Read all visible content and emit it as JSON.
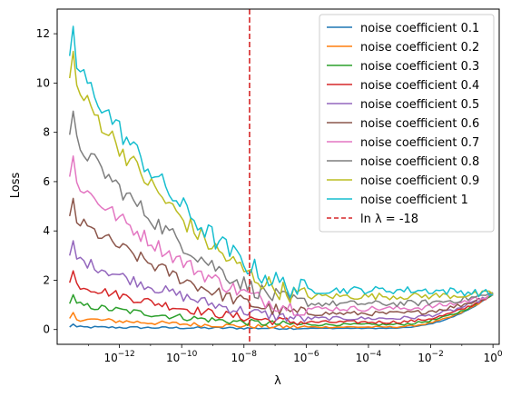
{
  "chart_data": {
    "type": "line",
    "xlabel": "λ",
    "ylabel": "Loss",
    "xscale": "log",
    "xlim_exponent": [
      -14,
      0.2
    ],
    "ylim": [
      -0.6,
      13
    ],
    "xticks": [
      {
        "base": "10",
        "exp": "−12",
        "value_exp": -12
      },
      {
        "base": "10",
        "exp": "−10",
        "value_exp": -10
      },
      {
        "base": "10",
        "exp": "−8",
        "value_exp": -8
      },
      {
        "base": "10",
        "exp": "−6",
        "value_exp": -6
      },
      {
        "base": "10",
        "exp": "−4",
        "value_exp": -4
      },
      {
        "base": "10",
        "exp": "−2",
        "value_exp": -2
      },
      {
        "base": "10",
        "exp": "0",
        "value_exp": 0
      }
    ],
    "yticks": [
      {
        "label": "0",
        "value": 0
      },
      {
        "label": "2",
        "value": 2
      },
      {
        "label": "4",
        "value": 4
      },
      {
        "label": "6",
        "value": 6
      },
      {
        "label": "8",
        "value": 8
      },
      {
        "label": "10",
        "value": 10
      },
      {
        "label": "12",
        "value": 12
      }
    ],
    "grid": false,
    "legend_position": "top-right",
    "x_exponent_start": -13.6,
    "x_exponent_end": 0,
    "series": [
      {
        "name": "noise coefficient 0.1",
        "color": "#1f77b4",
        "noise": 0.1,
        "start": 0.1,
        "plateau": 0.05
      },
      {
        "name": "noise coefficient 0.2",
        "color": "#ff7f0e",
        "noise": 0.2,
        "start": 0.45,
        "plateau": 0.1
      },
      {
        "name": "noise coefficient 0.3",
        "color": "#2ca02c",
        "noise": 0.3,
        "start": 1.05,
        "plateau": 0.2
      },
      {
        "name": "noise coefficient 0.4",
        "color": "#d62728",
        "noise": 0.4,
        "start": 1.9,
        "plateau": 0.3
      },
      {
        "name": "noise coefficient 0.5",
        "color": "#9467bd",
        "noise": 0.5,
        "start": 3.0,
        "plateau": 0.45
      },
      {
        "name": "noise coefficient 0.6",
        "color": "#8c564b",
        "noise": 0.6,
        "start": 4.6,
        "plateau": 0.65
      },
      {
        "name": "noise coefficient 0.7",
        "color": "#e377c2",
        "noise": 0.7,
        "start": 6.2,
        "plateau": 0.85
      },
      {
        "name": "noise coefficient 0.8",
        "color": "#7f7f7f",
        "noise": 0.8,
        "start": 7.9,
        "plateau": 1.05
      },
      {
        "name": "noise coefficient 0.9",
        "color": "#bcbd22",
        "noise": 0.9,
        "start": 10.2,
        "plateau": 1.35
      },
      {
        "name": "noise coefficient 1",
        "color": "#17becf",
        "noise": 1.0,
        "start": 11.1,
        "plateau": 1.6
      }
    ],
    "vline": {
      "name": "ln λ = -18",
      "x_exponent": -7.82,
      "color": "#d62728",
      "style": "dashed"
    },
    "end_value": 1.45
  }
}
